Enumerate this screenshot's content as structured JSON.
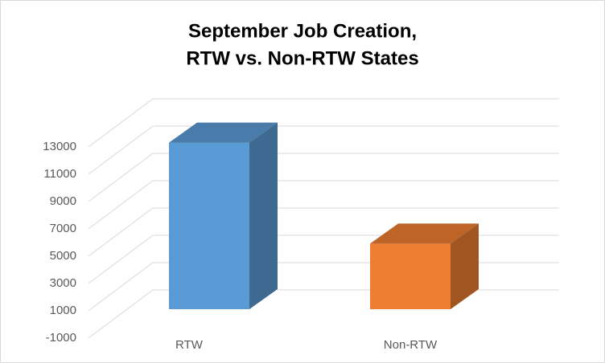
{
  "chart_data": {
    "type": "bar3d",
    "title": [
      "September Job Creation,",
      "RTW vs. Non-RTW States"
    ],
    "categories": [
      "RTW",
      "Non-RTW"
    ],
    "series": [
      {
        "values": [
          12200,
          4800
        ],
        "colors": [
          "#5b9bd5",
          "#ed7d31"
        ]
      }
    ],
    "ylim": [
      -1000,
      13000
    ],
    "yticks": [
      -1000,
      1000,
      3000,
      5000,
      7000,
      9000,
      11000,
      13000
    ],
    "grid": true
  }
}
